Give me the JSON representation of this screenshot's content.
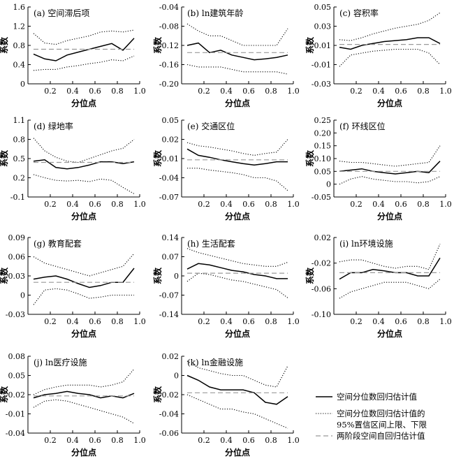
{
  "legend": [
    {
      "label": "空间分位数回归估计值",
      "style": "solid"
    },
    {
      "label": "空间分位数回归估计值的\n95%置信区间上限、下限",
      "style": "dotted"
    },
    {
      "label": "两阶段空间自回归估计值",
      "style": "dashed"
    }
  ],
  "chart_data": [
    {
      "type": "line",
      "title": "(a) 空间滞后项",
      "xlabel": "分位点",
      "ylabel": "系数",
      "xlim": [
        0,
        1
      ],
      "ylim": [
        0,
        1.6
      ],
      "xticks": [
        "0.2",
        "0.4",
        "0.6",
        "0.8",
        "1.0"
      ],
      "yticks": [
        "0",
        "0.4",
        "0.8",
        "1.2",
        "1.6"
      ],
      "x": [
        0.05,
        0.15,
        0.25,
        0.35,
        0.45,
        0.55,
        0.65,
        0.75,
        0.85,
        0.95
      ],
      "series": [
        {
          "values": [
            0.62,
            0.52,
            0.48,
            0.6,
            0.66,
            0.72,
            0.78,
            0.84,
            0.7,
            0.95
          ],
          "style": "solid"
        },
        {
          "values": [
            1.05,
            0.85,
            0.82,
            0.9,
            0.95,
            1.0,
            1.08,
            1.1,
            1.08,
            1.12
          ],
          "style": "dotted"
        },
        {
          "values": [
            0.28,
            0.3,
            0.3,
            0.35,
            0.38,
            0.42,
            0.45,
            0.5,
            0.48,
            0.58
          ],
          "style": "dotted"
        },
        {
          "values": [
            0.72,
            0.72,
            0.72,
            0.72,
            0.72,
            0.72,
            0.72,
            0.72,
            0.72,
            0.72
          ],
          "style": "dashed"
        }
      ]
    },
    {
      "type": "line",
      "title": "(b) ln建筑年龄",
      "xlabel": "分位点",
      "ylabel": "系数",
      "xlim": [
        0,
        1
      ],
      "ylim": [
        -0.2,
        -0.04
      ],
      "xticks": [
        "0.2",
        "0.4",
        "0.6",
        "0.8",
        "1.0"
      ],
      "yticks": [
        "-0.20",
        "-0.16",
        "-0.12",
        "-0.08",
        "-0.04"
      ],
      "x": [
        0.05,
        0.15,
        0.25,
        0.35,
        0.45,
        0.55,
        0.65,
        0.75,
        0.85,
        0.95
      ],
      "series": [
        {
          "values": [
            -0.12,
            -0.115,
            -0.135,
            -0.13,
            -0.14,
            -0.145,
            -0.15,
            -0.148,
            -0.145,
            -0.14
          ],
          "style": "solid"
        },
        {
          "values": [
            -0.075,
            -0.09,
            -0.1,
            -0.1,
            -0.11,
            -0.12,
            -0.12,
            -0.12,
            -0.12,
            -0.085
          ],
          "style": "dotted"
        },
        {
          "values": [
            -0.16,
            -0.165,
            -0.165,
            -0.165,
            -0.17,
            -0.175,
            -0.175,
            -0.175,
            -0.175,
            -0.18
          ],
          "style": "dotted"
        },
        {
          "values": [
            -0.135,
            -0.135,
            -0.135,
            -0.135,
            -0.135,
            -0.135,
            -0.135,
            -0.135,
            -0.135,
            -0.135
          ],
          "style": "dashed"
        }
      ]
    },
    {
      "type": "line",
      "title": "(c) 容积率",
      "xlabel": "分位点",
      "ylabel": "系数",
      "xlim": [
        0,
        1
      ],
      "ylim": [
        -0.03,
        0.05
      ],
      "xticks": [
        "0.2",
        "0.4",
        "0.6",
        "0.8",
        "1.0"
      ],
      "yticks": [
        "-0.03",
        "-0.01",
        "0.01",
        "0.03",
        "0.05"
      ],
      "x": [
        0.05,
        0.15,
        0.25,
        0.35,
        0.45,
        0.55,
        0.65,
        0.75,
        0.85,
        0.95
      ],
      "series": [
        {
          "values": [
            0.008,
            0.006,
            0.01,
            0.012,
            0.014,
            0.015,
            0.016,
            0.018,
            0.018,
            0.012
          ],
          "style": "solid"
        },
        {
          "values": [
            0.016,
            0.015,
            0.018,
            0.022,
            0.025,
            0.028,
            0.03,
            0.032,
            0.036,
            0.044
          ],
          "style": "dotted"
        },
        {
          "values": [
            -0.012,
            0.0,
            0.002,
            0.004,
            0.005,
            0.006,
            0.006,
            0.006,
            0.002,
            -0.01
          ],
          "style": "dotted"
        },
        {
          "values": [
            0.011,
            0.011,
            0.011,
            0.011,
            0.011,
            0.011,
            0.011,
            0.011,
            0.011,
            0.011
          ],
          "style": "dashed"
        }
      ]
    },
    {
      "type": "line",
      "title": "(d) 绿地率",
      "xlabel": "分位点",
      "ylabel": "系数",
      "xlim": [
        0,
        1
      ],
      "ylim": [
        -0.1,
        1.1
      ],
      "xticks": [
        "0.2",
        "0.4",
        "0.6",
        "0.8",
        "1.0"
      ],
      "yticks": [
        "-0.1",
        "0.2",
        "0.5",
        "0.8",
        "1.1"
      ],
      "x": [
        0.05,
        0.15,
        0.25,
        0.35,
        0.45,
        0.55,
        0.65,
        0.75,
        0.85,
        0.95
      ],
      "series": [
        {
          "values": [
            0.46,
            0.48,
            0.36,
            0.34,
            0.36,
            0.4,
            0.45,
            0.45,
            0.42,
            0.45
          ],
          "style": "solid"
        },
        {
          "values": [
            0.82,
            0.62,
            0.52,
            0.46,
            0.44,
            0.5,
            0.56,
            0.62,
            0.66,
            0.8
          ],
          "style": "dotted"
        },
        {
          "values": [
            0.25,
            0.2,
            0.16,
            0.15,
            0.16,
            0.14,
            0.18,
            0.16,
            0.05,
            -0.05
          ],
          "style": "dotted"
        },
        {
          "values": [
            0.44,
            0.44,
            0.44,
            0.44,
            0.44,
            0.44,
            0.44,
            0.44,
            0.44,
            0.44
          ],
          "style": "dashed"
        }
      ]
    },
    {
      "type": "line",
      "title": "(e) 交通区位",
      "xlabel": "分位点",
      "ylabel": "系数",
      "xlim": [
        0,
        1
      ],
      "ylim": [
        -0.07,
        0.05
      ],
      "xticks": [
        "0.2",
        "0.4",
        "0.6",
        "0.8",
        "1.0"
      ],
      "yticks": [
        "-0.07",
        "-0.04",
        "-0.01",
        "0.02",
        "0.05"
      ],
      "x": [
        0.05,
        0.15,
        0.25,
        0.35,
        0.45,
        0.55,
        0.65,
        0.75,
        0.85,
        0.95
      ],
      "series": [
        {
          "values": [
            0.005,
            -0.005,
            -0.008,
            -0.012,
            -0.015,
            -0.018,
            -0.02,
            -0.018,
            -0.015,
            -0.015
          ],
          "style": "solid"
        },
        {
          "values": [
            0.015,
            0.01,
            0.008,
            0.005,
            0.002,
            -0.002,
            -0.005,
            -0.002,
            0.0,
            0.02
          ],
          "style": "dotted"
        },
        {
          "values": [
            -0.025,
            -0.025,
            -0.028,
            -0.03,
            -0.032,
            -0.035,
            -0.04,
            -0.04,
            -0.045,
            -0.06
          ],
          "style": "dotted"
        },
        {
          "values": [
            -0.012,
            -0.012,
            -0.012,
            -0.012,
            -0.012,
            -0.012,
            -0.012,
            -0.012,
            -0.012,
            -0.012
          ],
          "style": "dashed"
        }
      ]
    },
    {
      "type": "line",
      "title": "(f) 环线区位",
      "xlabel": "分位点",
      "ylabel": "系数",
      "xlim": [
        0,
        1
      ],
      "ylim": [
        -0.05,
        0.25
      ],
      "xticks": [
        "0.2",
        "0.4",
        "0.6",
        "0.8",
        "1.0"
      ],
      "yticks": [
        "-0.05",
        "0",
        "0.05",
        "0.10",
        "0.15",
        "0.20",
        "0.25"
      ],
      "x": [
        0.05,
        0.15,
        0.25,
        0.35,
        0.45,
        0.55,
        0.65,
        0.75,
        0.85,
        0.95
      ],
      "series": [
        {
          "values": [
            0.05,
            0.055,
            0.06,
            0.05,
            0.045,
            0.04,
            0.045,
            0.05,
            0.045,
            0.09
          ],
          "style": "solid"
        },
        {
          "values": [
            0.09,
            0.085,
            0.085,
            0.08,
            0.075,
            0.07,
            0.075,
            0.08,
            0.085,
            0.15
          ],
          "style": "dotted"
        },
        {
          "values": [
            0.0,
            0.02,
            0.03,
            0.02,
            0.015,
            0.01,
            0.01,
            0.005,
            0.01,
            0.03
          ],
          "style": "dotted"
        },
        {
          "values": [
            0.05,
            0.05,
            0.05,
            0.05,
            0.05,
            0.05,
            0.05,
            0.05,
            0.05,
            0.05
          ],
          "style": "dashed"
        }
      ]
    },
    {
      "type": "line",
      "title": "(g) 教育配套",
      "xlabel": "分位点",
      "ylabel": "系数",
      "xlim": [
        0,
        1
      ],
      "ylim": [
        -0.03,
        0.09
      ],
      "xticks": [
        "0.2",
        "0.4",
        "0.6",
        "0.8",
        "1.0"
      ],
      "yticks": [
        "-0.03",
        "0",
        "0.03",
        "0.06",
        "0.09"
      ],
      "x": [
        0.05,
        0.15,
        0.25,
        0.35,
        0.45,
        0.55,
        0.65,
        0.75,
        0.85,
        0.95
      ],
      "series": [
        {
          "values": [
            0.025,
            0.028,
            0.03,
            0.025,
            0.018,
            0.012,
            0.015,
            0.02,
            0.02,
            0.042
          ],
          "style": "solid"
        },
        {
          "values": [
            0.06,
            0.05,
            0.045,
            0.04,
            0.035,
            0.03,
            0.035,
            0.04,
            0.045,
            0.065
          ],
          "style": "dotted"
        },
        {
          "values": [
            -0.015,
            0.008,
            0.01,
            0.008,
            0.002,
            -0.005,
            -0.003,
            0.0,
            0.0,
            0.0
          ],
          "style": "dotted"
        },
        {
          "values": [
            0.02,
            0.02,
            0.02,
            0.02,
            0.02,
            0.02,
            0.02,
            0.02,
            0.02,
            0.02
          ],
          "style": "dashed"
        }
      ]
    },
    {
      "type": "line",
      "title": "(h) 生活配套",
      "xlabel": "分位点",
      "ylabel": "系数",
      "xlim": [
        0,
        1
      ],
      "ylim": [
        -0.14,
        0.14
      ],
      "xticks": [
        "0.2",
        "0.4",
        "0.6",
        "0.8",
        "1.0"
      ],
      "yticks": [
        "-0.14",
        "-0.07",
        "0",
        "0.07",
        "0.14"
      ],
      "x": [
        0.05,
        0.15,
        0.25,
        0.35,
        0.45,
        0.55,
        0.65,
        0.75,
        0.85,
        0.95
      ],
      "series": [
        {
          "values": [
            0.025,
            0.045,
            0.04,
            0.03,
            0.02,
            0.015,
            0.005,
            0.0,
            -0.01,
            -0.01
          ],
          "style": "solid"
        },
        {
          "values": [
            0.1,
            0.085,
            0.075,
            0.065,
            0.055,
            0.045,
            0.04,
            0.035,
            0.035,
            0.05
          ],
          "style": "dotted"
        },
        {
          "values": [
            -0.02,
            0.01,
            0.005,
            -0.005,
            -0.015,
            -0.02,
            -0.03,
            -0.04,
            -0.05,
            -0.08
          ],
          "style": "dotted"
        },
        {
          "values": [
            0.01,
            0.01,
            0.01,
            0.01,
            0.01,
            0.01,
            0.01,
            0.01,
            0.01,
            0.01
          ],
          "style": "dashed"
        }
      ]
    },
    {
      "type": "line",
      "title": "(i) ln环境设施",
      "xlabel": "分位点",
      "ylabel": "系数",
      "xlim": [
        0,
        1
      ],
      "ylim": [
        -0.1,
        0.02
      ],
      "xticks": [
        "0.2",
        "0.4",
        "0.6",
        "0.8",
        "1.0"
      ],
      "yticks": [
        "-0.10",
        "-0.06",
        "-0.02",
        "0.02"
      ],
      "x": [
        0.05,
        0.15,
        0.25,
        0.35,
        0.45,
        0.55,
        0.65,
        0.75,
        0.85,
        0.95
      ],
      "series": [
        {
          "values": [
            -0.045,
            -0.035,
            -0.035,
            -0.03,
            -0.032,
            -0.035,
            -0.035,
            -0.04,
            -0.04,
            -0.012
          ],
          "style": "solid"
        },
        {
          "values": [
            -0.018,
            -0.015,
            -0.015,
            -0.02,
            -0.025,
            -0.028,
            -0.025,
            -0.025,
            -0.03,
            0.01
          ],
          "style": "dotted"
        },
        {
          "values": [
            -0.075,
            -0.065,
            -0.06,
            -0.055,
            -0.05,
            -0.05,
            -0.05,
            -0.055,
            -0.06,
            -0.045
          ],
          "style": "dotted"
        },
        {
          "values": [
            -0.035,
            -0.035,
            -0.035,
            -0.035,
            -0.035,
            -0.035,
            -0.035,
            -0.035,
            -0.035,
            -0.035
          ],
          "style": "dashed"
        }
      ]
    },
    {
      "type": "line",
      "title": "(j) ln医疗设施",
      "xlabel": "分位点",
      "ylabel": "系数",
      "xlim": [
        0,
        1
      ],
      "ylim": [
        -0.04,
        0.08
      ],
      "xticks": [
        "0.2",
        "0.4",
        "0.6",
        "0.8",
        "1.0"
      ],
      "yticks": [
        "-0.04",
        "-0.01",
        "0.02",
        "0.05",
        "0.08"
      ],
      "x": [
        0.05,
        0.15,
        0.25,
        0.35,
        0.45,
        0.55,
        0.65,
        0.75,
        0.85,
        0.95
      ],
      "series": [
        {
          "values": [
            0.015,
            0.02,
            0.022,
            0.025,
            0.022,
            0.02,
            0.015,
            0.018,
            0.015,
            0.022
          ],
          "style": "solid"
        },
        {
          "values": [
            0.02,
            0.028,
            0.032,
            0.035,
            0.035,
            0.035,
            0.032,
            0.035,
            0.04,
            0.06
          ],
          "style": "dotted"
        },
        {
          "values": [
            0.0,
            0.01,
            0.012,
            0.01,
            0.005,
            0.0,
            -0.005,
            -0.01,
            -0.015,
            -0.025
          ],
          "style": "dotted"
        },
        {
          "values": [
            0.018,
            0.018,
            0.018,
            0.018,
            0.018,
            0.018,
            0.018,
            0.018,
            0.018,
            0.018
          ],
          "style": "dashed"
        }
      ]
    },
    {
      "type": "line",
      "title": "(k) ln金融设施",
      "xlabel": "分位点",
      "ylabel": "系数",
      "xlim": [
        0,
        1
      ],
      "ylim": [
        -0.06,
        0.02
      ],
      "xticks": [
        "0.2",
        "0.4",
        "0.6",
        "0.8",
        "1.0"
      ],
      "yticks": [
        "-0.06",
        "-0.04",
        "-0.02",
        "0",
        "0.02"
      ],
      "x": [
        0.05,
        0.15,
        0.25,
        0.35,
        0.45,
        0.55,
        0.65,
        0.75,
        0.85,
        0.95
      ],
      "series": [
        {
          "values": [
            0.0,
            -0.005,
            -0.012,
            -0.015,
            -0.015,
            -0.015,
            -0.018,
            -0.028,
            -0.03,
            -0.022
          ],
          "style": "solid"
        },
        {
          "values": [
            0.015,
            0.008,
            0.005,
            0.002,
            0.0,
            0.0,
            -0.005,
            -0.01,
            -0.012,
            0.01
          ],
          "style": "dotted"
        },
        {
          "values": [
            -0.02,
            -0.025,
            -0.03,
            -0.035,
            -0.035,
            -0.038,
            -0.04,
            -0.045,
            -0.05,
            -0.055
          ],
          "style": "dotted"
        },
        {
          "values": [
            -0.018,
            -0.018,
            -0.018,
            -0.018,
            -0.018,
            -0.018,
            -0.018,
            -0.018,
            -0.018,
            -0.018
          ],
          "style": "dashed"
        }
      ]
    }
  ]
}
